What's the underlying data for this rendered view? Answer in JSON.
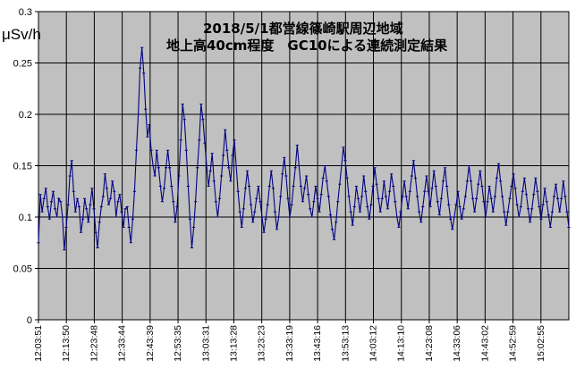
{
  "chart_data": {
    "type": "line",
    "title": [
      "2018/5/1都営線篠崎駅周辺地域",
      "地上高40cm程度　GC10による連続測定結果"
    ],
    "ylabel": "μSv/h",
    "xlabel": "",
    "ylim": [
      0,
      0.3
    ],
    "ytick_values": [
      0,
      0.05,
      0.1,
      0.15,
      0.2,
      0.25,
      0.3
    ],
    "ytick_labels": [
      "0",
      "0.05",
      "0.1",
      "0.15",
      "0.2",
      "0.25",
      "0.3"
    ],
    "xtick_labels": [
      "12:03:51",
      "12:13:50",
      "12:23:48",
      "12:33:44",
      "12:43:39",
      "12:53:35",
      "13:03:31",
      "13:13:28",
      "13:23:23",
      "13:33:19",
      "13:43:16",
      "13:53:13",
      "14:03:12",
      "14:13:10",
      "14:23:08",
      "14:33:06",
      "14:43:02",
      "14:52:59",
      "15:02:55"
    ],
    "grid": true,
    "legend": "none",
    "colors": {
      "series": "#000080",
      "plot_bg": "#c0c0c0",
      "grid": "#000000"
    },
    "series": [
      {
        "values": [
          0.075,
          0.122,
          0.105,
          0.118,
          0.128,
          0.11,
          0.098,
          0.115,
          0.125,
          0.108,
          0.1,
          0.118,
          0.115,
          0.1,
          0.068,
          0.09,
          0.112,
          0.14,
          0.155,
          0.125,
          0.105,
          0.118,
          0.11,
          0.085,
          0.098,
          0.118,
          0.108,
          0.095,
          0.112,
          0.128,
          0.108,
          0.085,
          0.07,
          0.095,
          0.11,
          0.12,
          0.142,
          0.128,
          0.112,
          0.118,
          0.135,
          0.125,
          0.1,
          0.115,
          0.122,
          0.105,
          0.09,
          0.108,
          0.11,
          0.09,
          0.075,
          0.098,
          0.125,
          0.165,
          0.2,
          0.245,
          0.265,
          0.24,
          0.205,
          0.178,
          0.19,
          0.165,
          0.15,
          0.14,
          0.165,
          0.148,
          0.13,
          0.115,
          0.128,
          0.148,
          0.165,
          0.148,
          0.13,
          0.115,
          0.095,
          0.11,
          0.14,
          0.175,
          0.21,
          0.195,
          0.165,
          0.13,
          0.098,
          0.07,
          0.09,
          0.115,
          0.148,
          0.175,
          0.21,
          0.195,
          0.172,
          0.15,
          0.13,
          0.145,
          0.162,
          0.135,
          0.115,
          0.1,
          0.118,
          0.14,
          0.16,
          0.185,
          0.165,
          0.148,
          0.135,
          0.16,
          0.175,
          0.15,
          0.125,
          0.105,
          0.09,
          0.108,
          0.128,
          0.145,
          0.13,
          0.112,
          0.095,
          0.105,
          0.118,
          0.13,
          0.115,
          0.1,
          0.085,
          0.098,
          0.112,
          0.13,
          0.145,
          0.128,
          0.105,
          0.088,
          0.1,
          0.12,
          0.142,
          0.158,
          0.14,
          0.118,
          0.1,
          0.112,
          0.13,
          0.148,
          0.17,
          0.15,
          0.13,
          0.115,
          0.128,
          0.14,
          0.122,
          0.108,
          0.1,
          0.115,
          0.13,
          0.118,
          0.105,
          0.122,
          0.138,
          0.15,
          0.135,
          0.12,
          0.102,
          0.088,
          0.078,
          0.095,
          0.115,
          0.132,
          0.15,
          0.168,
          0.155,
          0.138,
          0.12,
          0.105,
          0.092,
          0.11,
          0.13,
          0.118,
          0.105,
          0.12,
          0.14,
          0.125,
          0.11,
          0.098,
          0.112,
          0.13,
          0.148,
          0.132,
          0.118,
          0.105,
          0.118,
          0.135,
          0.12,
          0.108,
          0.125,
          0.142,
          0.13,
          0.115,
          0.1,
          0.09,
          0.105,
          0.12,
          0.135,
          0.12,
          0.108,
          0.125,
          0.14,
          0.155,
          0.138,
          0.12,
          0.105,
          0.095,
          0.11,
          0.125,
          0.14,
          0.125,
          0.11,
          0.128,
          0.145,
          0.13,
          0.115,
          0.102,
          0.118,
          0.135,
          0.148,
          0.13,
          0.112,
          0.098,
          0.088,
          0.1,
          0.112,
          0.125,
          0.11,
          0.098,
          0.108,
          0.12,
          0.135,
          0.15,
          0.135,
          0.118,
          0.105,
          0.118,
          0.132,
          0.145,
          0.13,
          0.115,
          0.1,
          0.115,
          0.13,
          0.118,
          0.105,
          0.12,
          0.138,
          0.152,
          0.135,
          0.12,
          0.105,
          0.092,
          0.105,
          0.118,
          0.13,
          0.142,
          0.128,
          0.112,
          0.1,
          0.11,
          0.125,
          0.138,
          0.122,
          0.108,
          0.095,
          0.108,
          0.122,
          0.138,
          0.125,
          0.11,
          0.098,
          0.112,
          0.128,
          0.115,
          0.102,
          0.09,
          0.105,
          0.12,
          0.132,
          0.118,
          0.105,
          0.118,
          0.135,
          0.12,
          0.105,
          0.09
        ]
      }
    ]
  }
}
